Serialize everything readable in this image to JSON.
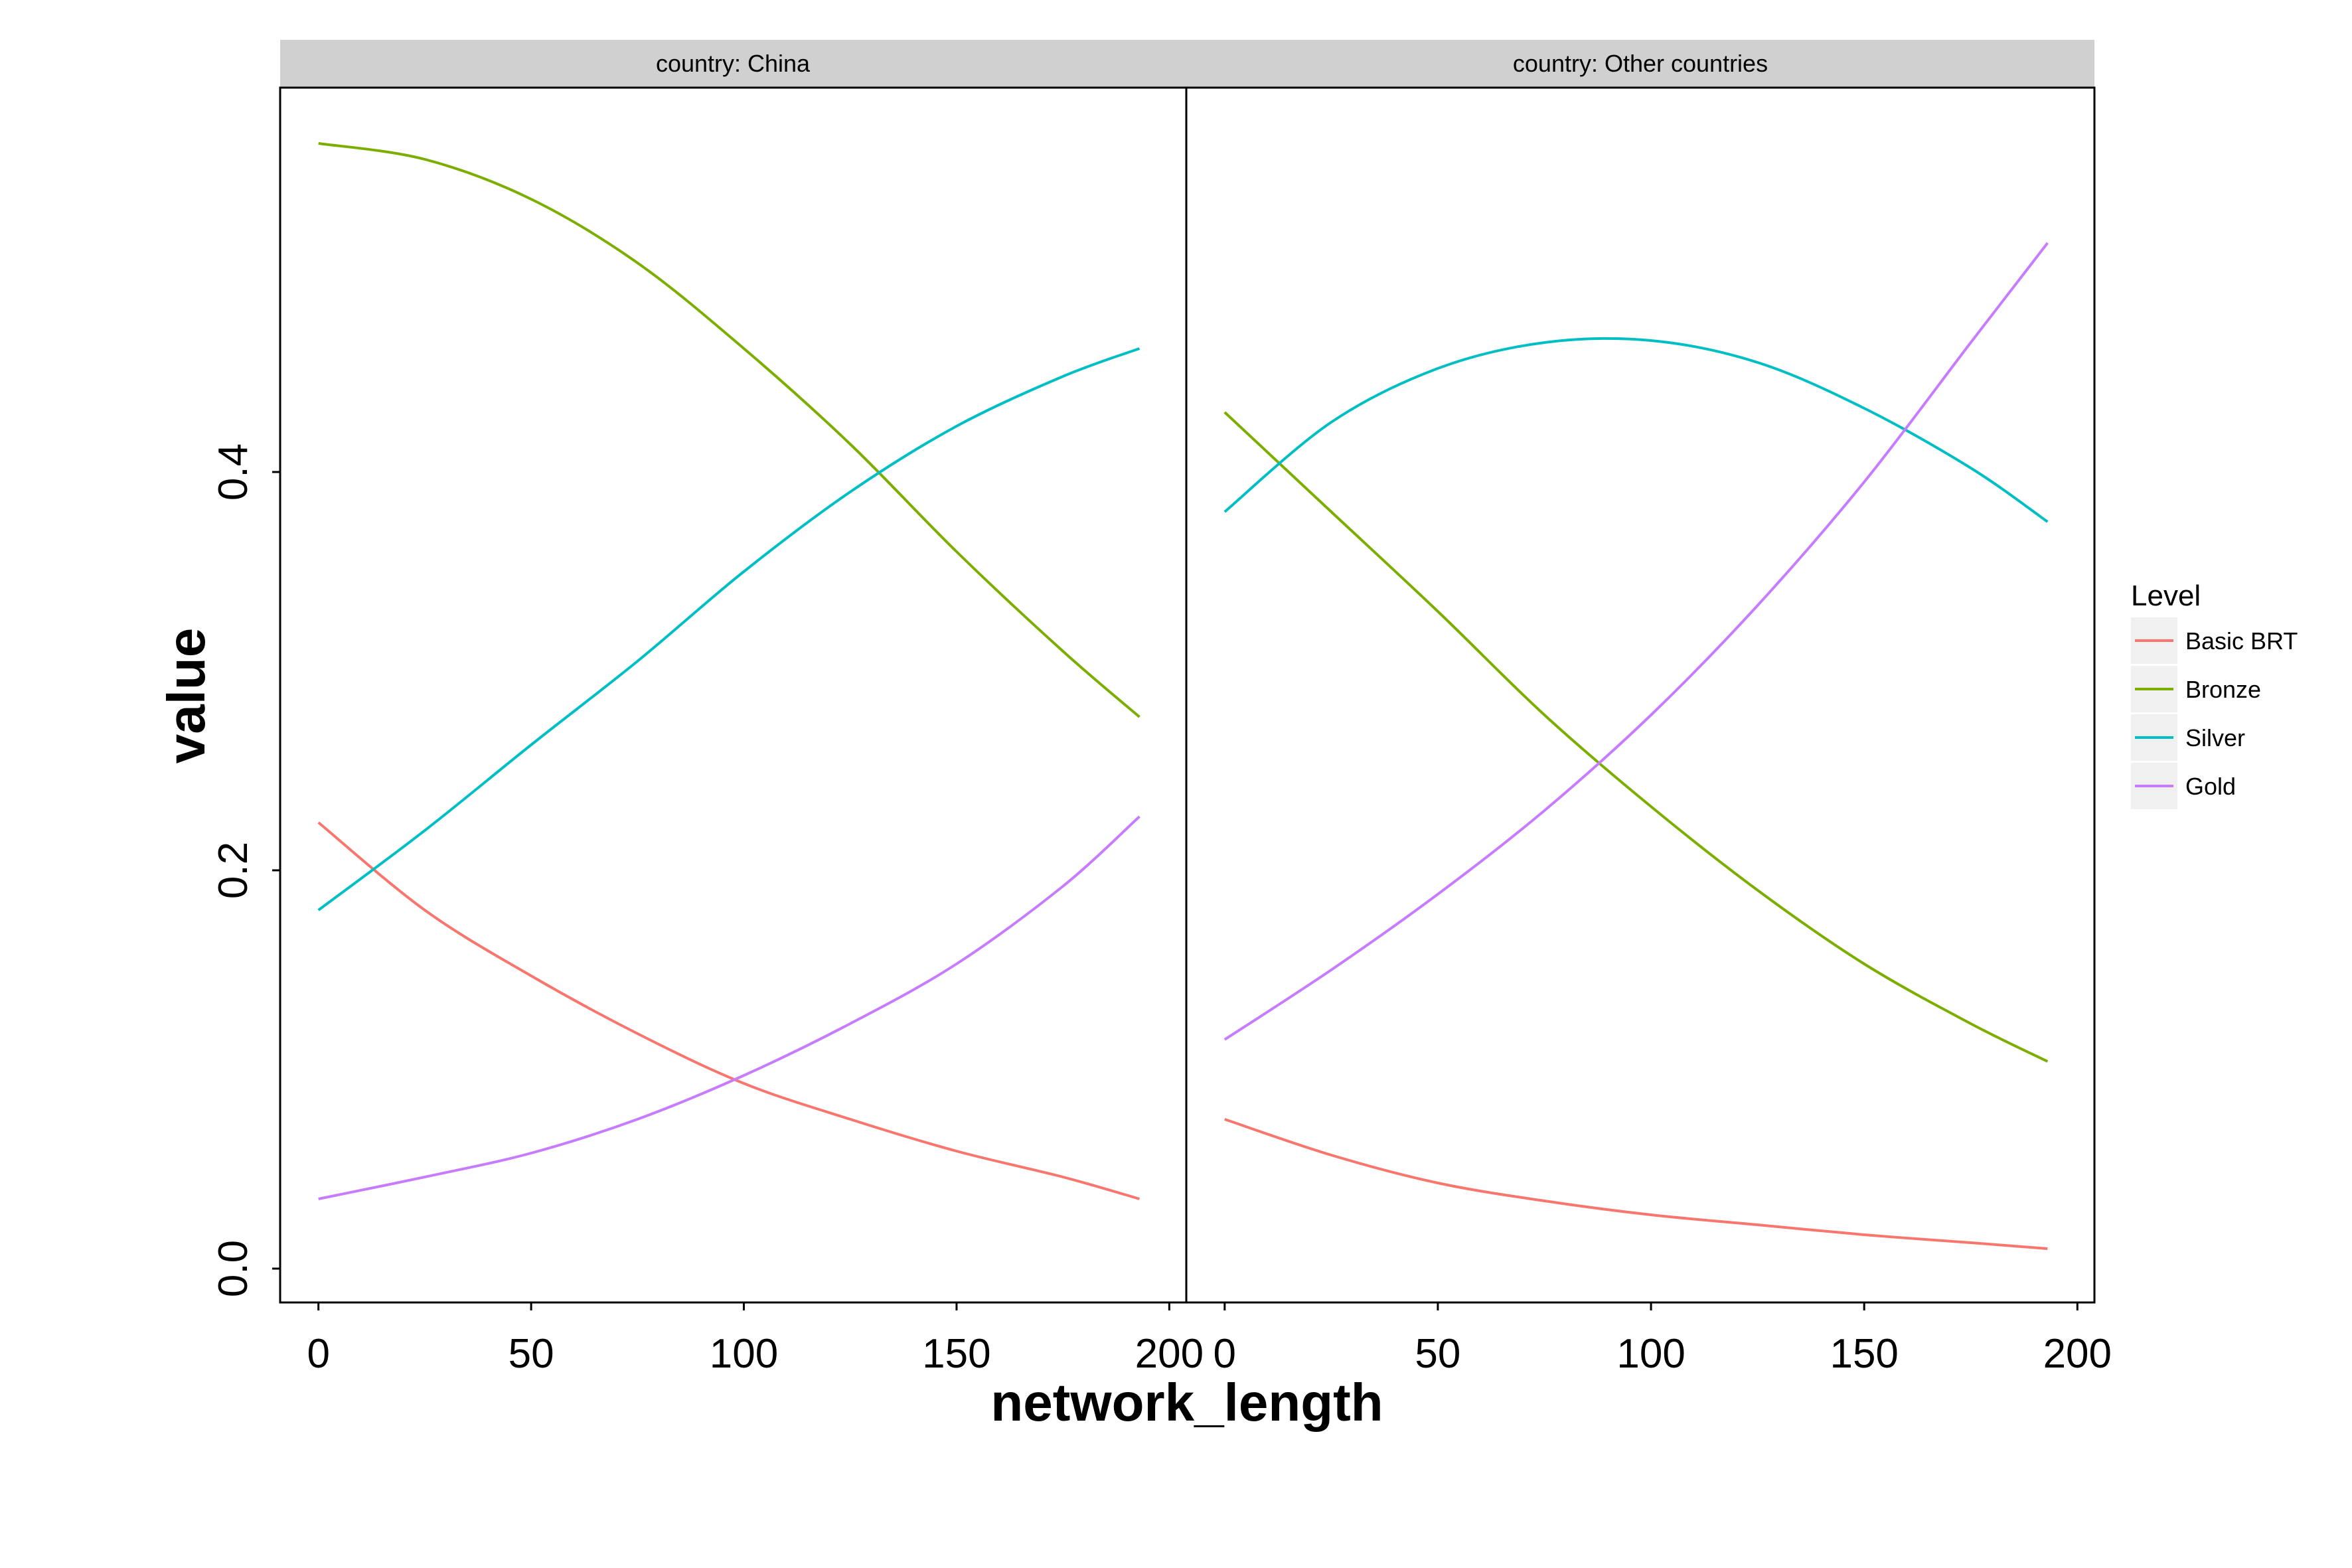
{
  "chart_data": {
    "type": "line",
    "xlabel": "network_length",
    "ylabel": "value",
    "xlim": [
      -9,
      204
    ],
    "ylim": [
      -0.017,
      0.593
    ],
    "x_ticks": [
      0,
      50,
      100,
      150,
      200
    ],
    "x_tick_labels": [
      "0",
      "50",
      "100",
      "150",
      "200"
    ],
    "y_ticks": [
      0.0,
      0.2,
      0.4
    ],
    "y_tick_labels": [
      "0.0",
      "0.2",
      "0.4"
    ],
    "grid": false,
    "legend": {
      "title": "Level",
      "position": "right",
      "entries": [
        "Basic BRT",
        "Bronze",
        "Silver",
        "Gold"
      ]
    },
    "colors": {
      "Basic BRT": "#F8766D",
      "Bronze": "#7CAE00",
      "Silver": "#00BFC4",
      "Gold": "#C77CFF"
    },
    "x": [
      0,
      25,
      50,
      75,
      100,
      125,
      150,
      175,
      193
    ],
    "panels": [
      {
        "strip": "country: China",
        "series": [
          {
            "name": "Basic BRT",
            "values": [
              0.224,
              0.18,
              0.147,
              0.118,
              0.093,
              0.075,
              0.059,
              0.046,
              0.035
            ]
          },
          {
            "name": "Bronze",
            "values": [
              0.565,
              0.557,
              0.537,
              0.505,
              0.462,
              0.414,
              0.36,
              0.31,
              0.277
            ]
          },
          {
            "name": "Silver",
            "values": [
              0.18,
              0.22,
              0.263,
              0.305,
              0.35,
              0.39,
              0.423,
              0.448,
              0.462
            ]
          },
          {
            "name": "Gold",
            "values": [
              0.035,
              0.046,
              0.058,
              0.075,
              0.097,
              0.123,
              0.153,
              0.192,
              0.227
            ]
          }
        ]
      },
      {
        "strip": "country: Other countries",
        "series": [
          {
            "name": "Basic BRT",
            "values": [
              0.075,
              0.057,
              0.043,
              0.034,
              0.027,
              0.022,
              0.017,
              0.013,
              0.01
            ]
          },
          {
            "name": "Bronze",
            "values": [
              0.43,
              0.38,
              0.33,
              0.278,
              0.232,
              0.19,
              0.153,
              0.123,
              0.104
            ]
          },
          {
            "name": "Silver",
            "values": [
              0.38,
              0.425,
              0.452,
              0.465,
              0.466,
              0.455,
              0.432,
              0.402,
              0.375
            ]
          },
          {
            "name": "Gold",
            "values": [
              0.115,
              0.15,
              0.188,
              0.23,
              0.278,
              0.333,
              0.395,
              0.465,
              0.515
            ]
          }
        ]
      }
    ]
  }
}
